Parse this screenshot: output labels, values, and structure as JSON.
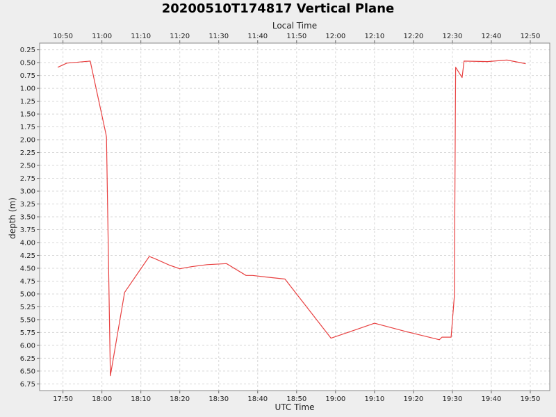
{
  "chart_data": {
    "type": "line",
    "title": "20200510T174817 Vertical Plane",
    "xlabel": "UTC Time",
    "x2label": "Local Time",
    "ylabel": "depth (m)",
    "y_inverted": true,
    "ylim": [
      0.12,
      6.88
    ],
    "xlim": [
      "17:44",
      "19:55"
    ],
    "grid": true,
    "x_ticks": [
      "17:50",
      "18:00",
      "18:10",
      "18:20",
      "18:30",
      "18:40",
      "18:50",
      "19:00",
      "19:10",
      "19:20",
      "19:30",
      "19:40",
      "19:50"
    ],
    "x2_ticks": [
      "10:50",
      "11:00",
      "11:10",
      "11:20",
      "11:30",
      "11:40",
      "11:50",
      "12:00",
      "12:10",
      "12:20",
      "12:30",
      "12:40",
      "12:50"
    ],
    "y_ticks": [
      "0.25",
      "0.50",
      "0.75",
      "1.00",
      "1.25",
      "1.50",
      "1.75",
      "2.00",
      "2.25",
      "2.50",
      "2.75",
      "3.00",
      "3.25",
      "3.50",
      "3.75",
      "4.00",
      "4.25",
      "4.50",
      "4.75",
      "5.00",
      "5.25",
      "5.50",
      "5.75",
      "6.00",
      "6.25",
      "6.50",
      "6.75"
    ],
    "series": [
      {
        "color": "#e84040",
        "points": [
          [
            "17:48:40",
            0.59
          ],
          [
            "17:51:00",
            0.51
          ],
          [
            "17:57:00",
            0.47
          ],
          [
            "18:01:00",
            1.88
          ],
          [
            "18:01:10",
            1.95
          ],
          [
            "18:02:10",
            6.59
          ],
          [
            "18:05:50",
            4.97
          ],
          [
            "18:12:10",
            4.27
          ],
          [
            "18:13:30",
            4.31
          ],
          [
            "18:17:20",
            4.44
          ],
          [
            "18:20:00",
            4.51
          ],
          [
            "18:23:00",
            4.47
          ],
          [
            "18:27:00",
            4.43
          ],
          [
            "18:32:00",
            4.41
          ],
          [
            "18:37:00",
            4.64
          ],
          [
            "18:38:40",
            4.64
          ],
          [
            "18:42:00",
            4.67
          ],
          [
            "18:47:00",
            4.71
          ],
          [
            "18:58:50",
            5.86
          ],
          [
            "19:10:00",
            5.57
          ],
          [
            "19:18:00",
            5.73
          ],
          [
            "19:26:40",
            5.89
          ],
          [
            "19:27:20",
            5.84
          ],
          [
            "19:29:40",
            5.84
          ],
          [
            "19:30:30",
            5.05
          ],
          [
            "19:30:50",
            0.59
          ],
          [
            "19:32:30",
            0.79
          ],
          [
            "19:33:00",
            0.47
          ],
          [
            "19:39:00",
            0.48
          ],
          [
            "19:44:00",
            0.45
          ],
          [
            "19:48:50",
            0.52
          ]
        ]
      }
    ]
  }
}
